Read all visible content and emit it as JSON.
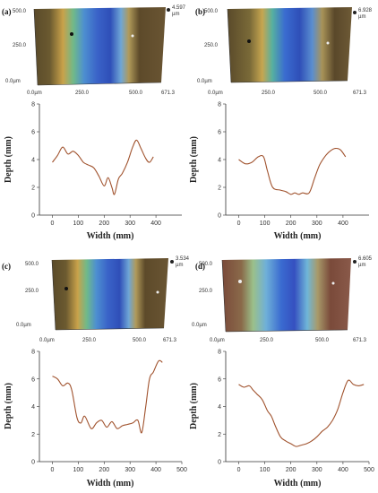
{
  "colors": {
    "line": "#a0522d",
    "axis": "#333333"
  },
  "panels": [
    {
      "letter": "(a)",
      "z_max": "4.597",
      "z_unit": "µm"
    },
    {
      "letter": "(b)",
      "z_max": "6.928",
      "z_unit": "µm"
    },
    {
      "letter": "(c)",
      "z_max": "3.534",
      "z_unit": "µm"
    },
    {
      "letter": "(d)",
      "z_max": "6.605",
      "z_unit": "µm"
    }
  ],
  "image_axes": {
    "y_ticks": [
      "500.0",
      "250.0",
      "0.0µm"
    ],
    "x_ticks": [
      "0.0µm",
      "250.0",
      "500.0",
      "671.3"
    ]
  },
  "chart_data": [
    {
      "type": "line",
      "xlabel": "Width (mm)",
      "ylabel": "Depth (mm)",
      "xlim": [
        -50,
        500
      ],
      "ylim": [
        0,
        8
      ],
      "xticks": [
        0,
        100,
        200,
        300,
        400
      ],
      "yticks": [
        0,
        2,
        4,
        6,
        8
      ],
      "x": [
        0,
        20,
        40,
        60,
        80,
        100,
        120,
        140,
        160,
        180,
        200,
        215,
        230,
        240,
        255,
        270,
        290,
        310,
        325,
        340,
        360,
        375,
        390
      ],
      "y": [
        3.8,
        4.3,
        4.9,
        4.4,
        4.6,
        4.3,
        3.8,
        3.6,
        3.4,
        2.8,
        2.1,
        2.7,
        2.0,
        1.5,
        2.6,
        3.0,
        3.8,
        4.9,
        5.4,
        4.9,
        4.1,
        3.8,
        4.2
      ]
    },
    {
      "type": "line",
      "xlabel": "Width (mm)",
      "ylabel": "Depth (mm)",
      "xlim": [
        -50,
        500
      ],
      "ylim": [
        0,
        8
      ],
      "xticks": [
        0,
        100,
        200,
        300,
        400
      ],
      "yticks": [
        0,
        2,
        4,
        6,
        8
      ],
      "x": [
        0,
        25,
        50,
        75,
        95,
        110,
        130,
        160,
        180,
        200,
        215,
        230,
        245,
        270,
        290,
        310,
        330,
        350,
        370,
        390,
        410
      ],
      "y": [
        4.0,
        3.7,
        3.8,
        4.2,
        4.2,
        3.2,
        2.0,
        1.8,
        1.7,
        1.5,
        1.6,
        1.5,
        1.6,
        1.6,
        2.6,
        3.6,
        4.2,
        4.6,
        4.8,
        4.7,
        4.2
      ]
    },
    {
      "type": "line",
      "xlabel": "Width (mm)",
      "ylabel": "Depth (mm)",
      "xlim": [
        -50,
        500
      ],
      "ylim": [
        0,
        8
      ],
      "xticks": [
        0,
        100,
        200,
        300,
        400,
        500
      ],
      "yticks": [
        0,
        2,
        4,
        6,
        8
      ],
      "x": [
        0,
        20,
        40,
        60,
        75,
        95,
        110,
        125,
        150,
        170,
        190,
        210,
        230,
        250,
        270,
        290,
        310,
        330,
        345,
        360,
        375,
        390,
        410,
        425
      ],
      "y": [
        6.2,
        6.0,
        5.5,
        5.7,
        5.2,
        3.2,
        2.8,
        3.3,
        2.4,
        2.8,
        3.0,
        2.5,
        2.9,
        2.4,
        2.6,
        2.7,
        2.8,
        3.0,
        2.1,
        3.9,
        6.0,
        6.5,
        7.3,
        7.2
      ]
    },
    {
      "type": "line",
      "xlabel": "Width (mm)",
      "ylabel": "Depth (mm)",
      "xlim": [
        -50,
        500
      ],
      "ylim": [
        0,
        8
      ],
      "xticks": [
        0,
        100,
        200,
        300,
        400,
        500
      ],
      "yticks": [
        0,
        2,
        4,
        6,
        8
      ],
      "x": [
        0,
        20,
        40,
        55,
        70,
        90,
        110,
        125,
        140,
        160,
        180,
        200,
        220,
        240,
        260,
        280,
        300,
        320,
        340,
        360,
        380,
        400,
        420,
        440,
        460,
        480
      ],
      "y": [
        5.6,
        5.4,
        5.5,
        5.2,
        4.9,
        4.5,
        3.7,
        3.3,
        2.6,
        1.8,
        1.5,
        1.3,
        1.1,
        1.2,
        1.3,
        1.5,
        1.8,
        2.2,
        2.5,
        3.0,
        3.8,
        5.0,
        5.9,
        5.6,
        5.5,
        5.6
      ]
    }
  ]
}
